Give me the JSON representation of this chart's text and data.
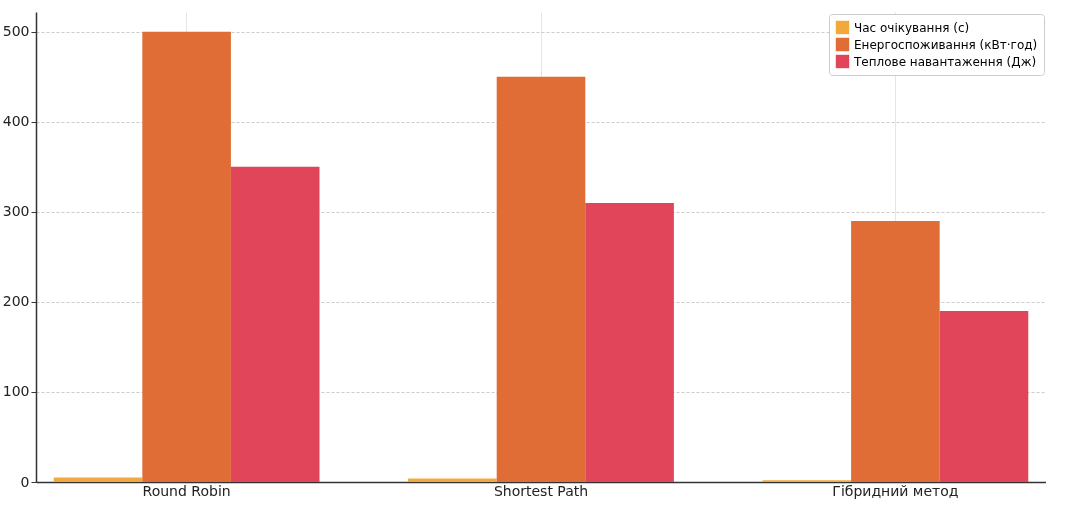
{
  "chart_data": {
    "type": "bar",
    "categories": [
      "Round Robin",
      "Shortest Path",
      "Гібридний метод"
    ],
    "series": [
      {
        "name": "Час очікування (с)",
        "color": "#f2a93b",
        "values": [
          5,
          4,
          2
        ]
      },
      {
        "name": "Енергоспоживання (кВт·год)",
        "color": "#e06d35",
        "values": [
          500,
          450,
          290
        ]
      },
      {
        "name": "Теплове навантаження (Дж)",
        "color": "#e0455a",
        "values": [
          350,
          310,
          190
        ]
      }
    ],
    "ylim": [
      0,
      522
    ],
    "yticks": [
      0,
      100,
      200,
      300,
      400,
      500
    ],
    "grid": true,
    "legend": "top right"
  }
}
